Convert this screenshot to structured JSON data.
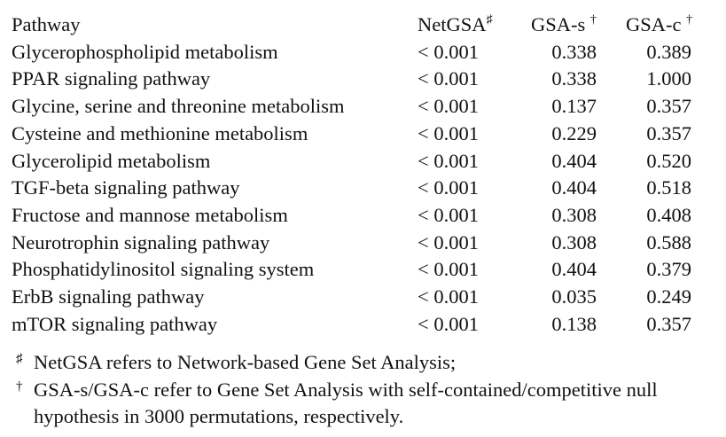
{
  "table": {
    "headers": {
      "pathway": "Pathway",
      "netgsa": "NetGSA",
      "netgsa_mark": "♯",
      "gsa_s": "GSA-s",
      "gsa_s_mark": "†",
      "gsa_c": "GSA-c",
      "gsa_c_mark": "†"
    },
    "rows": [
      {
        "pathway": "Glycerophospholipid metabolism",
        "netgsa": "< 0.001",
        "gsa_s": "0.338",
        "gsa_c": "0.389"
      },
      {
        "pathway": "PPAR signaling pathway",
        "netgsa": "< 0.001",
        "gsa_s": "0.338",
        "gsa_c": "1.000"
      },
      {
        "pathway": "Glycine, serine and threonine metabolism",
        "netgsa": "< 0.001",
        "gsa_s": "0.137",
        "gsa_c": "0.357"
      },
      {
        "pathway": "Cysteine and methionine metabolism",
        "netgsa": "< 0.001",
        "gsa_s": "0.229",
        "gsa_c": "0.357"
      },
      {
        "pathway": "Glycerolipid metabolism",
        "netgsa": "< 0.001",
        "gsa_s": "0.404",
        "gsa_c": "0.520"
      },
      {
        "pathway": "TGF-beta signaling pathway",
        "netgsa": "< 0.001",
        "gsa_s": "0.404",
        "gsa_c": "0.518"
      },
      {
        "pathway": "Fructose and mannose metabolism",
        "netgsa": "< 0.001",
        "gsa_s": "0.308",
        "gsa_c": "0.408"
      },
      {
        "pathway": "Neurotrophin signaling pathway",
        "netgsa": "< 0.001",
        "gsa_s": "0.308",
        "gsa_c": "0.588"
      },
      {
        "pathway": "Phosphatidylinositol signaling system",
        "netgsa": "< 0.001",
        "gsa_s": "0.404",
        "gsa_c": "0.379"
      },
      {
        "pathway": "ErbB signaling pathway",
        "netgsa": "< 0.001",
        "gsa_s": "0.035",
        "gsa_c": "0.249"
      },
      {
        "pathway": "mTOR signaling pathway",
        "netgsa": "< 0.001",
        "gsa_s": "0.138",
        "gsa_c": "0.357"
      }
    ]
  },
  "footnotes": [
    {
      "mark": "♯",
      "text": "NetGSA refers to Network-based Gene Set Analysis;"
    },
    {
      "mark": "†",
      "text": "GSA-s/GSA-c refer to Gene Set Analysis with self-contained/competitive null hypothesis in 3000 permutations, respectively."
    }
  ]
}
